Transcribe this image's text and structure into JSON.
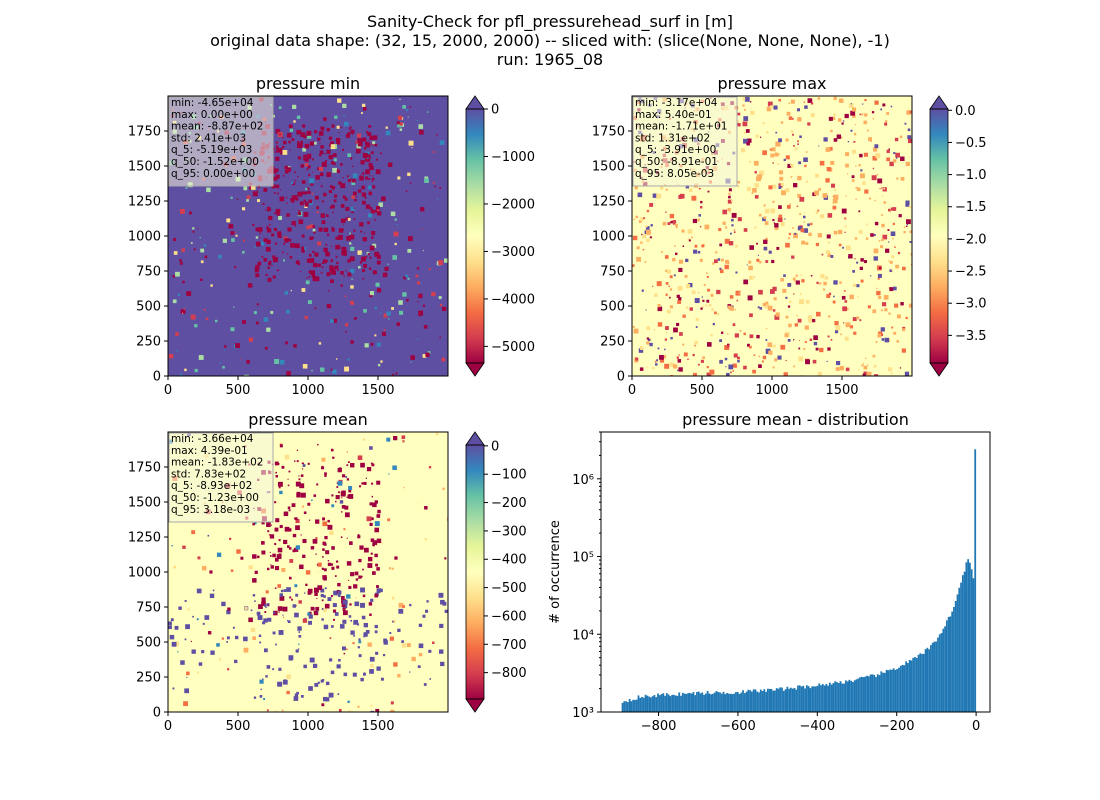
{
  "figure": {
    "title_lines": [
      "Sanity-Check for pfl_pressurehead_surf in [m]",
      "original data shape: (32, 15, 2000, 2000) -- sliced with: (slice(None, None, None), -1)",
      "run: 1965_08"
    ]
  },
  "colors": {
    "spectral": [
      "#9e0142",
      "#d53e4f",
      "#f46d43",
      "#fdae61",
      "#fee08b",
      "#ffffbf",
      "#e6f598",
      "#abdda4",
      "#66c2a5",
      "#3288bd",
      "#5e4fa2"
    ],
    "hist_bar": "#1f77b4",
    "stats_box_bg": "#f5f5dc"
  },
  "chart_data": [
    {
      "type": "heatmap",
      "title": "pressure min",
      "x_ticks": [
        "0",
        "500",
        "1000",
        "1500"
      ],
      "y_ticks": [
        "0",
        "250",
        "500",
        "750",
        "1000",
        "1250",
        "1500",
        "1750"
      ],
      "xlim": [
        0,
        2000
      ],
      "ylim": [
        0,
        2000
      ],
      "colorbar": {
        "range": [
          -5350,
          0
        ],
        "ticks": [
          0,
          -1000,
          -2000,
          -3000,
          -4000,
          -5000
        ],
        "tick_labels": [
          "0",
          "−1000",
          "−2000",
          "−3000",
          "−4000",
          "−5000"
        ],
        "extend": "both"
      },
      "stats": [
        "min: -4.65e+04",
        "max: 0.00e+00",
        "mean: -8.87e+02",
        "std: 2.41e+03",
        "q_5: -5.19e+03",
        "q_50: -1.52e+00",
        "q_95: 0.00e+00"
      ]
    },
    {
      "type": "heatmap",
      "title": "pressure max",
      "x_ticks": [
        "0",
        "500",
        "1000",
        "1500"
      ],
      "y_ticks": [
        "0",
        "250",
        "500",
        "750",
        "1000",
        "1250",
        "1500",
        "1750"
      ],
      "xlim": [
        0,
        2000
      ],
      "ylim": [
        0,
        2000
      ],
      "colorbar": {
        "range": [
          -3.93,
          0.02
        ],
        "ticks": [
          0.0,
          -0.5,
          -1.0,
          -1.5,
          -2.0,
          -2.5,
          -3.0,
          -3.5
        ],
        "tick_labels": [
          "0.0",
          "−0.5",
          "−1.0",
          "−1.5",
          "−2.0",
          "−2.5",
          "−3.0",
          "−3.5"
        ],
        "extend": "both"
      },
      "stats": [
        "min: -3.17e+04",
        "max: 5.40e-01",
        "mean: -1.71e+01",
        "std: 1.31e+02",
        "q_5: -3.91e+00",
        "q_50: -8.91e-01",
        "q_95: 8.05e-03"
      ]
    },
    {
      "type": "heatmap",
      "title": "pressure mean",
      "x_ticks": [
        "0",
        "500",
        "1000",
        "1500"
      ],
      "y_ticks": [
        "0",
        "250",
        "500",
        "750",
        "1000",
        "1250",
        "1500",
        "1750"
      ],
      "xlim": [
        0,
        2000
      ],
      "ylim": [
        0,
        2000
      ],
      "colorbar": {
        "range": [
          -893,
          3
        ],
        "ticks": [
          0,
          -100,
          -200,
          -300,
          -400,
          -500,
          -600,
          -700,
          -800
        ],
        "tick_labels": [
          "0",
          "−100",
          "−200",
          "−300",
          "−400",
          "−500",
          "−600",
          "−700",
          "−800"
        ],
        "extend": "both"
      },
      "stats": [
        "min: -3.66e+04",
        "max: 4.39e-01",
        "mean: -1.83e+02",
        "std: 7.83e+02",
        "q_5: -8.93e+02",
        "q_50: -1.23e+00",
        "q_95: 3.18e-03"
      ]
    },
    {
      "type": "bar",
      "title": "pressure mean - distribution",
      "ylabel": "# of occurrence",
      "xlabel": "",
      "yscale": "log",
      "xlim": [
        -945,
        35
      ],
      "ylim": [
        1000,
        4000000
      ],
      "x_ticks": [
        -800,
        -600,
        -400,
        -200,
        0
      ],
      "x_tick_labels": [
        "−800",
        "−600",
        "−400",
        "−200",
        "0"
      ],
      "y_ticks": [
        1000,
        10000,
        100000,
        1000000
      ],
      "y_tick_labels": [
        "10³",
        "10⁴",
        "10⁵",
        "10⁶"
      ],
      "bin_range": [
        -893,
        0
      ],
      "bins": 200,
      "profile_x": [
        -893,
        -850,
        -800,
        -700,
        -600,
        -500,
        -400,
        -300,
        -250,
        -200,
        -150,
        -120,
        -100,
        -80,
        -60,
        -50,
        -40,
        -30,
        -25,
        -20,
        -15,
        -12,
        -10,
        -8,
        -6,
        -4,
        -2,
        0
      ],
      "profile_y": [
        1350,
        1550,
        1650,
        1750,
        1800,
        1950,
        2200,
        2600,
        3000,
        3700,
        5000,
        6500,
        8500,
        12500,
        20000,
        28000,
        42000,
        65000,
        80000,
        92000,
        82000,
        70000,
        60000,
        55000,
        52000,
        52000,
        55000,
        2400000
      ]
    }
  ]
}
